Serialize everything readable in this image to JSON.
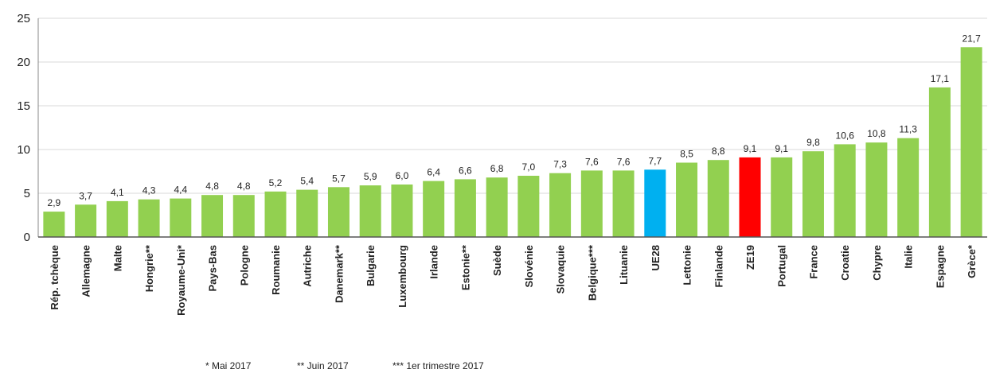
{
  "chart_data": {
    "type": "bar",
    "categories": [
      "Rép. tchèque",
      "Allemagne",
      "Malte",
      "Hongrie**",
      "Royaume-Uni*",
      "Pays-Bas",
      "Pologne",
      "Roumanie",
      "Autriche",
      "Danemark**",
      "Bulgarie",
      "Luxembourg",
      "Irlande",
      "Estonie**",
      "Suède",
      "Slovénie",
      "Slovaquie",
      "Belgique***",
      "Lituanie",
      "UE28",
      "Lettonie",
      "Finlande",
      "ZE19",
      "Portugal",
      "France",
      "Croatie",
      "Chypre",
      "Italie",
      "Espagne",
      "Grèce*"
    ],
    "values": [
      2.9,
      3.7,
      4.1,
      4.3,
      4.4,
      4.8,
      4.8,
      5.2,
      5.4,
      5.7,
      5.9,
      6.0,
      6.4,
      6.6,
      6.8,
      7.0,
      7.3,
      7.6,
      7.6,
      7.7,
      8.5,
      8.8,
      9.1,
      9.1,
      9.8,
      10.6,
      10.8,
      11.3,
      17.1,
      21.7
    ],
    "value_labels": [
      "2,9",
      "3,7",
      "4,1",
      "4,3",
      "4,4",
      "4,8",
      "4,8",
      "5,2",
      "5,4",
      "5,7",
      "5,9",
      "6,0",
      "6,4",
      "6,6",
      "6,8",
      "7,0",
      "7,3",
      "7,6",
      "7,6",
      "7,7",
      "8,5",
      "8,8",
      "9,1",
      "9,1",
      "9,8",
      "10,6",
      "10,8",
      "11,3",
      "17,1",
      "21,7"
    ],
    "colors": [
      "#92d050",
      "#92d050",
      "#92d050",
      "#92d050",
      "#92d050",
      "#92d050",
      "#92d050",
      "#92d050",
      "#92d050",
      "#92d050",
      "#92d050",
      "#92d050",
      "#92d050",
      "#92d050",
      "#92d050",
      "#92d050",
      "#92d050",
      "#92d050",
      "#92d050",
      "#00b0f0",
      "#92d050",
      "#92d050",
      "#ff0000",
      "#92d050",
      "#92d050",
      "#92d050",
      "#92d050",
      "#92d050",
      "#92d050",
      "#92d050"
    ],
    "ylim": [
      0,
      25
    ],
    "yticks": [
      0,
      5,
      10,
      15,
      20,
      25
    ],
    "grid": true,
    "notes": [
      "* Mai 2017",
      "** Juin 2017",
      "*** 1er trimestre 2017"
    ]
  }
}
